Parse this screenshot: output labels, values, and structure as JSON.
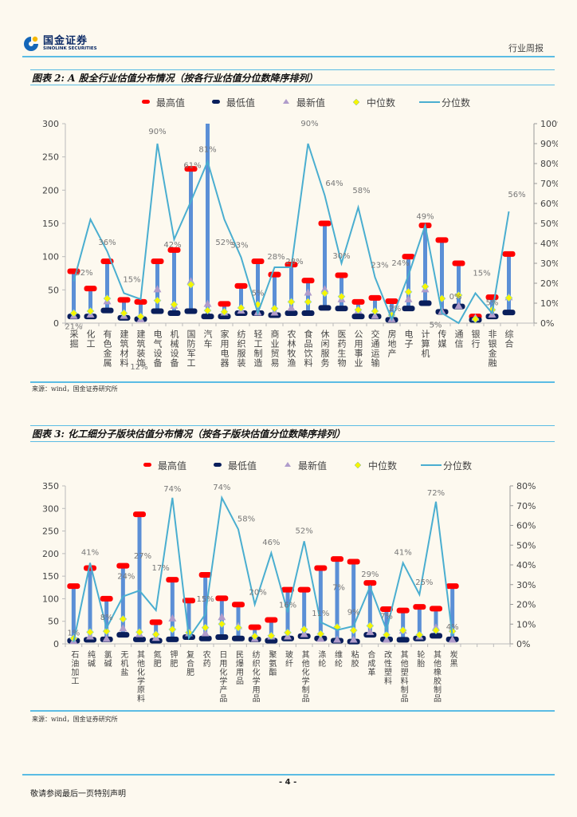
{
  "header": {
    "logo_cn": "国金证券",
    "logo_en": "SINOLINK SECURITIES",
    "report_type": "行业周报"
  },
  "figure2": {
    "title": "图表 2: A 股全行业估值分布情况（按各行业估值分位数降序排列）",
    "source": "来源：wind，国金证券研究所"
  },
  "figure3": {
    "title": "图表 3: 化工细分子版块估值分布情况（按各子版块估值分位数降序排列）",
    "source": "来源：wind，国金证券研究所"
  },
  "footer": {
    "page_number": "- 4 -",
    "disclaimer": "敬请参阅最后一页特别声明"
  },
  "colors": {
    "max": "#ff0000",
    "min": "#0a1f5c",
    "latest": "#b09ccb",
    "median": "#f5f500",
    "percentile_line": "#4aaed0",
    "range_bar": "#5b8fd6",
    "rule": "#5bbce4"
  },
  "chart_data": [
    {
      "type": "line",
      "title": "A 股全行业估值分布情况",
      "legend": [
        "最高值",
        "最低值",
        "最新值",
        "中位数",
        "分位数"
      ],
      "legend_position": "top-right",
      "ylim": [
        0,
        300
      ],
      "yticks": [
        0,
        50,
        100,
        150,
        200,
        250,
        300
      ],
      "y2lim": [
        0,
        100
      ],
      "y2ticks": [
        "0%",
        "10%",
        "20%",
        "30%",
        "40%",
        "50%",
        "60%",
        "70%",
        "80%",
        "90%",
        "100%"
      ],
      "categories": [
        "采掘",
        "化工",
        "有色金属",
        "建筑材料",
        "建筑装饰",
        "电气设备",
        "机械设备",
        "国防军工",
        "汽车",
        "家用电器",
        "纺织服装",
        "轻工制造",
        "商业贸易",
        "农林牧渔",
        "食品饮料",
        "休闲服务",
        "医药生物",
        "公用事业",
        "交通运输",
        "房地产",
        "电子",
        "计算机",
        "传媒",
        "通信",
        "银行",
        "非银金融",
        "综合"
      ],
      "series": [
        {
          "name": "最高值",
          "values": [
            78,
            52,
            93,
            35,
            32,
            93,
            110,
            232,
            300,
            29,
            56,
            93,
            73,
            88,
            64,
            150,
            72,
            32,
            38,
            33,
            100,
            147,
            125,
            90,
            10,
            39,
            104
          ]
        },
        {
          "name": "最低值",
          "values": [
            10,
            10,
            19,
            8,
            6,
            18,
            15,
            18,
            10,
            10,
            15,
            15,
            12,
            15,
            15,
            23,
            22,
            10,
            10,
            5,
            22,
            30,
            17,
            25,
            5,
            10,
            16
          ]
        },
        {
          "name": "最新值",
          "values": [
            10,
            12,
            32,
            10,
            5,
            50,
            25,
            62,
            28,
            15,
            18,
            15,
            15,
            22,
            45,
            50,
            35,
            18,
            10,
            5,
            35,
            50,
            17,
            25,
            7,
            12,
            38
          ]
        },
        {
          "name": "中位数",
          "values": [
            15,
            18,
            37,
            15,
            10,
            34,
            28,
            58,
            19,
            17,
            23,
            28,
            22,
            32,
            32,
            45,
            40,
            20,
            18,
            12,
            47,
            55,
            37,
            42,
            6,
            20,
            38
          ]
        },
        {
          "name": "分位数",
          "axis": "right",
          "values": [
            21,
            52,
            36,
            15,
            12,
            90,
            42,
            61,
            81,
            52,
            33,
            5,
            28,
            28,
            90,
            64,
            30,
            58,
            23,
            2,
            24,
            49,
            5,
            0,
            15,
            5,
            56
          ],
          "labels": [
            "21%",
            "52%",
            "36%",
            "15%",
            "12%",
            "90%",
            "42%",
            "61%",
            "81%",
            "52%",
            "33%",
            "5%",
            "28%",
            "28%",
            "90%",
            "64%",
            "30%",
            "58%",
            "23%",
            "2%",
            "24%",
            "49%",
            "5%",
            "0%",
            "15%",
            "5%",
            "56%"
          ]
        }
      ]
    },
    {
      "type": "line",
      "title": "化工细分子版块估值分布情况",
      "legend": [
        "最高值",
        "最低值",
        "最新值",
        "中位数",
        "分位数"
      ],
      "legend_position": "top-center",
      "ylim": [
        0,
        350
      ],
      "yticks": [
        0,
        50,
        100,
        150,
        200,
        250,
        300,
        350
      ],
      "y2lim": [
        0,
        80
      ],
      "y2ticks": [
        "0%",
        "10%",
        "20%",
        "30%",
        "40%",
        "50%",
        "60%",
        "70%",
        "80%"
      ],
      "categories": [
        "石油加工",
        "纯碱",
        "氯碱",
        "无机盐",
        "其他化学原料",
        "氮肥",
        "钾肥",
        "复合肥",
        "农药",
        "日用化学产品",
        "民爆用品",
        "纺织化学用品",
        "聚氨酯",
        "玻纤",
        "其他化学制品",
        "涤纶",
        "维纶",
        "粘胶",
        "合成革",
        "改性塑料",
        "其他塑料制品",
        "轮胎",
        "其他橡胶制品",
        "炭黑"
      ],
      "series": [
        {
          "name": "最高值",
          "values": [
            128,
            168,
            100,
            173,
            287,
            48,
            142,
            96,
            153,
            101,
            87,
            37,
            53,
            120,
            120,
            168,
            188,
            182,
            135,
            77,
            74,
            82,
            78,
            128
          ]
        },
        {
          "name": "最低值",
          "values": [
            7,
            9,
            10,
            20,
            10,
            7,
            10,
            15,
            12,
            15,
            12,
            10,
            7,
            12,
            17,
            12,
            7,
            5,
            20,
            10,
            9,
            12,
            18,
            10
          ]
        },
        {
          "name": "最新值",
          "values": [
            5,
            15,
            10,
            33,
            20,
            12,
            55,
            22,
            22,
            58,
            38,
            10,
            15,
            15,
            20,
            10,
            8,
            8,
            25,
            8,
            28,
            15,
            35,
            8
          ]
        },
        {
          "name": "中位数",
          "values": [
            12,
            26,
            28,
            55,
            26,
            21,
            32,
            25,
            36,
            44,
            36,
            17,
            18,
            25,
            32,
            22,
            37,
            30,
            40,
            20,
            30,
            20,
            30,
            28
          ]
        },
        {
          "name": "分位数",
          "axis": "right",
          "values": [
            1,
            41,
            8,
            24,
            27,
            17,
            74,
            3,
            15,
            74,
            58,
            20,
            46,
            16,
            52,
            11,
            7,
            9,
            29,
            7,
            41,
            25,
            72,
            4
          ],
          "labels": [
            "1%",
            "41%",
            "8%",
            "24%",
            "27%",
            "17%",
            "74%",
            "",
            "15%",
            "74%",
            "58%",
            "20%",
            "46%",
            "16%",
            "52%",
            "11%",
            "7%",
            "9%",
            "29%",
            "7%",
            "41%",
            "25%",
            "72%",
            "4%"
          ]
        }
      ]
    }
  ]
}
